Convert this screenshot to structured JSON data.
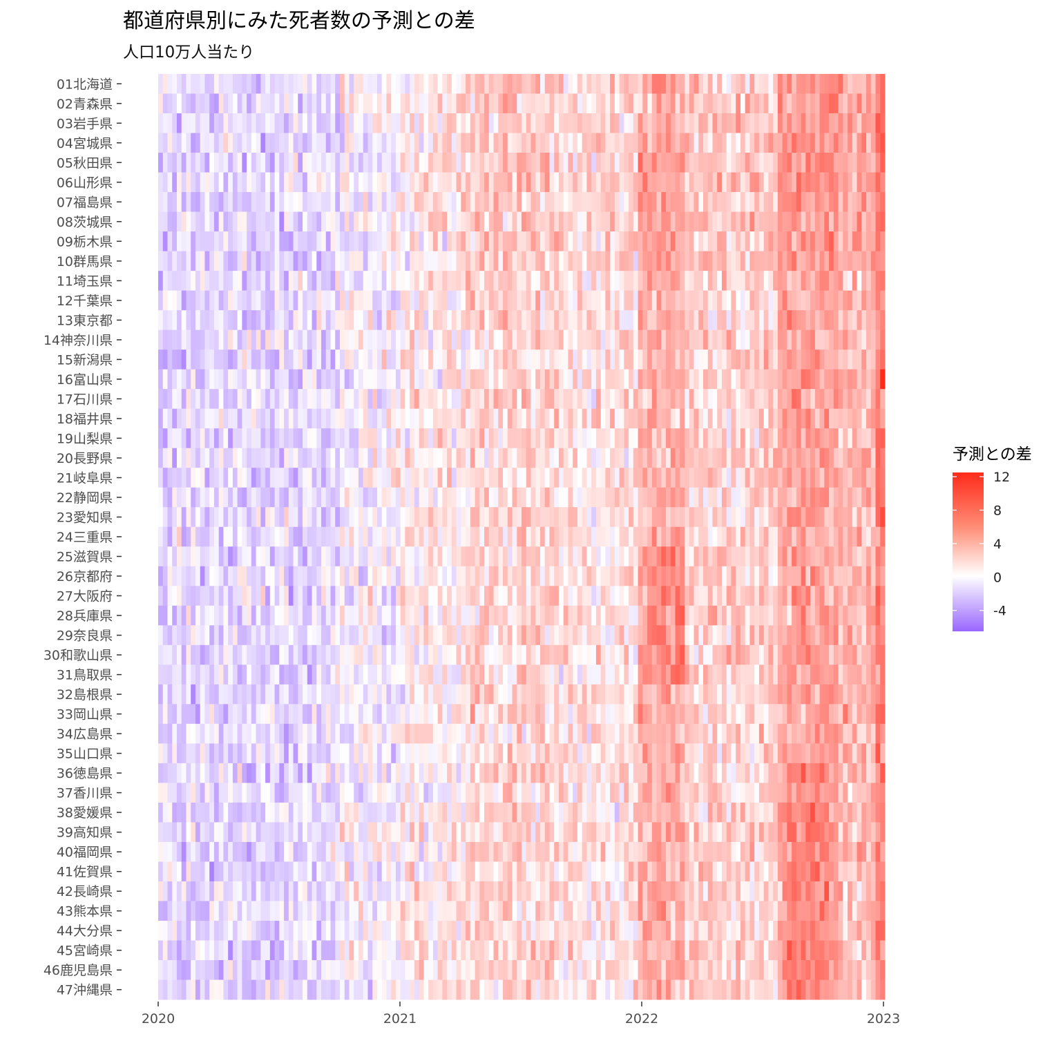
{
  "chart_data": {
    "type": "heatmap",
    "title": "都道府県別にみた死者数の予測との差",
    "subtitle": "人口10万人当たり",
    "xlabel": "",
    "ylabel": "",
    "x_ticks": [
      "2020",
      "2021",
      "2022",
      "2023"
    ],
    "x_range": [
      "2020-01",
      "2023-01"
    ],
    "x_unit": "week",
    "categories": [
      "01北海道",
      "02青森県",
      "03岩手県",
      "04宮城県",
      "05秋田県",
      "06山形県",
      "07福島県",
      "08茨城県",
      "09栃木県",
      "10群馬県",
      "11埼玉県",
      "12千葉県",
      "13東京都",
      "14神奈川県",
      "15新潟県",
      "16富山県",
      "17石川県",
      "18福井県",
      "19山梨県",
      "20長野県",
      "21岐阜県",
      "22静岡県",
      "23愛知県",
      "24三重県",
      "25滋賀県",
      "26京都府",
      "27大阪府",
      "28兵庫県",
      "29奈良県",
      "30和歌山県",
      "31鳥取県",
      "32島根県",
      "33岡山県",
      "34広島県",
      "35山口県",
      "36徳島県",
      "37香川県",
      "38愛媛県",
      "39高知県",
      "40福岡県",
      "41佐賀県",
      "42長崎県",
      "43熊本県",
      "44大分県",
      "45宮崎県",
      "46鹿児島県",
      "47沖縄県"
    ],
    "legend": {
      "title": "予測との差",
      "ticks": [
        12,
        8,
        4,
        0,
        -4
      ],
      "range": [
        -6.5,
        12.5
      ],
      "low_color": "#9966ff",
      "mid_color": "#ffffff",
      "high_color": "#ff2a1a",
      "placement": "right"
    },
    "grid": false,
    "note_values": "cell values reconstructed approximately by week from the visual pattern"
  }
}
